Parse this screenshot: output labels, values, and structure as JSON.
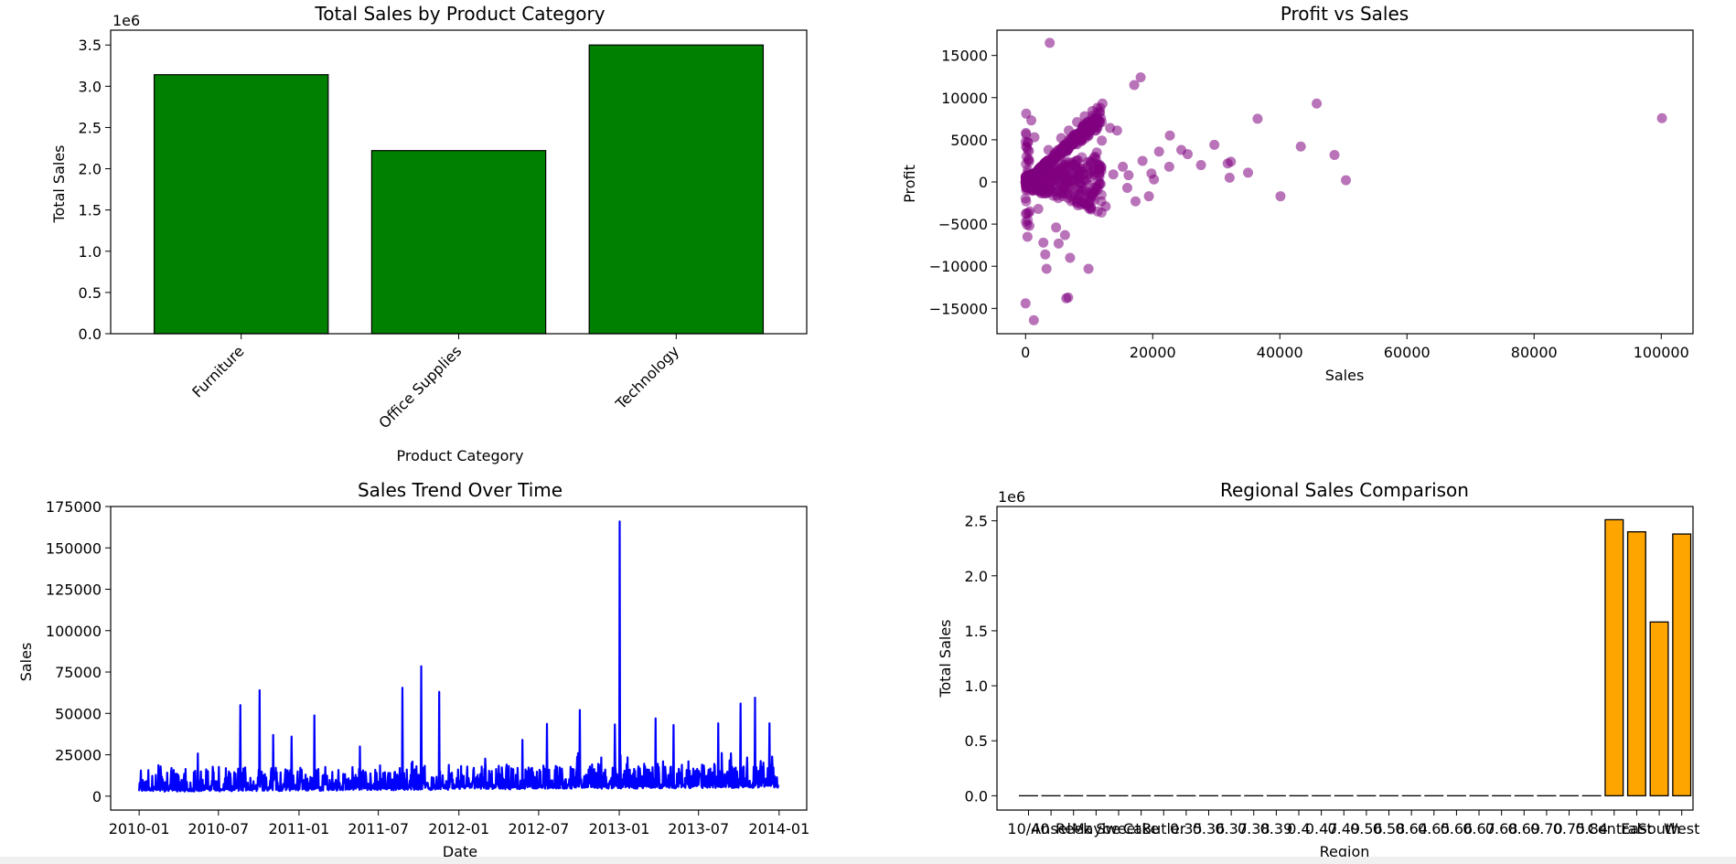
{
  "chart_data": [
    {
      "type": "bar",
      "title": "Total Sales by Product Category",
      "xlabel": "Product Category",
      "ylabel": "Total Sales",
      "offset_label": "1e6",
      "categories": [
        "Furniture",
        "Office Supplies",
        "Technology"
      ],
      "values": [
        3.14,
        2.22,
        3.5
      ],
      "ylim": [
        0,
        3.68
      ],
      "yticks": [
        "0.0",
        "0.5",
        "1.0",
        "1.5",
        "2.0",
        "2.5",
        "3.0",
        "3.5"
      ],
      "bar_color": "#008000",
      "edge_color": "#000000"
    },
    {
      "type": "scatter",
      "title": "Profit vs Sales",
      "xlabel": "Sales",
      "ylabel": "Profit",
      "xlim": [
        -4500,
        105000
      ],
      "ylim": [
        -18000,
        18000
      ],
      "xticks": [
        "0",
        "20000",
        "40000",
        "60000",
        "80000",
        "100000"
      ],
      "yticks": [
        "−15000",
        "−10000",
        "−5000",
        "0",
        "5000",
        "10000",
        "15000"
      ],
      "color": "#800080",
      "points": [
        [
          100119,
          7559
        ],
        [
          45800,
          9300
        ],
        [
          50400,
          200
        ],
        [
          48600,
          3200
        ],
        [
          43300,
          4200
        ],
        [
          40100,
          -1700
        ],
        [
          36500,
          7500
        ],
        [
          35000,
          1100
        ],
        [
          32300,
          2400
        ],
        [
          31800,
          2200
        ],
        [
          32100,
          500
        ],
        [
          29700,
          4400
        ],
        [
          27600,
          2000
        ],
        [
          25500,
          3300
        ],
        [
          24500,
          3800
        ],
        [
          22700,
          5500
        ],
        [
          22600,
          1800
        ],
        [
          21000,
          3600
        ],
        [
          20200,
          300
        ],
        [
          19800,
          1000
        ],
        [
          19400,
          -1700
        ],
        [
          18400,
          2500
        ],
        [
          18100,
          12400
        ],
        [
          17100,
          11500
        ],
        [
          17300,
          -2300
        ],
        [
          16200,
          800
        ],
        [
          16000,
          -700
        ],
        [
          15300,
          1800
        ],
        [
          13300,
          6400
        ],
        [
          12600,
          -2900
        ],
        [
          12100,
          9300
        ],
        [
          9900,
          -10300
        ],
        [
          7800,
          2000
        ],
        [
          6400,
          -13800
        ],
        [
          6700,
          -13700
        ],
        [
          7000,
          -9000
        ],
        [
          6200,
          -6300
        ],
        [
          5200,
          -7300
        ],
        [
          4800,
          -5400
        ],
        [
          3800,
          16500
        ],
        [
          3100,
          -8600
        ],
        [
          2800,
          -7200
        ],
        [
          3300,
          -10300
        ],
        [
          1300,
          -16400
        ],
        [
          0,
          -14400
        ],
        [
          300,
          -6500
        ],
        [
          600,
          -5200
        ],
        [
          100,
          8100
        ],
        [
          900,
          7300
        ],
        [
          1400,
          5300
        ],
        [
          400,
          4700
        ],
        [
          2000,
          -3200
        ],
        [
          2500,
          -1000
        ],
        [
          3600,
          3800
        ],
        [
          4300,
          2700
        ],
        [
          5600,
          5200
        ],
        [
          6800,
          6100
        ],
        [
          8100,
          7100
        ],
        [
          9300,
          7800
        ],
        [
          10500,
          8400
        ],
        [
          11300,
          8800
        ],
        [
          8700,
          -1500
        ],
        [
          10100,
          1000
        ],
        [
          11200,
          3500
        ],
        [
          12000,
          4900
        ],
        [
          14400,
          6100
        ],
        [
          13800,
          900
        ],
        [
          9700,
          5600
        ],
        [
          7400,
          4400
        ],
        [
          5000,
          -1200
        ],
        [
          6000,
          900
        ]
      ]
    },
    {
      "type": "line",
      "title": "Sales Trend Over Time",
      "xlabel": "Date",
      "ylabel": "Sales",
      "x_range": [
        "2010-01-01",
        "2013-12-31"
      ],
      "ylim": [
        -8400,
        175000
      ],
      "xticks": [
        "2010-01",
        "2010-07",
        "2011-01",
        "2011-07",
        "2012-01",
        "2012-07",
        "2013-01",
        "2013-07",
        "2014-01"
      ],
      "yticks": [
        "0",
        "25000",
        "50000",
        "75000",
        "100000",
        "125000",
        "150000",
        "175000"
      ],
      "color": "#0000ff",
      "peaks": [
        {
          "date": "2010-05-15",
          "value": 25800
        },
        {
          "date": "2010-08-20",
          "value": 55000
        },
        {
          "date": "2010-10-03",
          "value": 64000
        },
        {
          "date": "2010-11-03",
          "value": 37000
        },
        {
          "date": "2010-12-15",
          "value": 36000
        },
        {
          "date": "2011-02-05",
          "value": 48800
        },
        {
          "date": "2011-05-20",
          "value": 30000
        },
        {
          "date": "2011-08-25",
          "value": 65500
        },
        {
          "date": "2011-10-07",
          "value": 78500
        },
        {
          "date": "2011-11-17",
          "value": 63000
        },
        {
          "date": "2012-03-01",
          "value": 22700
        },
        {
          "date": "2012-05-25",
          "value": 34000
        },
        {
          "date": "2012-07-20",
          "value": 43700
        },
        {
          "date": "2012-10-03",
          "value": 52000
        },
        {
          "date": "2012-12-22",
          "value": 43300
        },
        {
          "date": "2013-01-02",
          "value": 166000
        },
        {
          "date": "2013-03-25",
          "value": 47000
        },
        {
          "date": "2013-05-05",
          "value": 43000
        },
        {
          "date": "2013-08-15",
          "value": 44000
        },
        {
          "date": "2013-10-05",
          "value": 56000
        },
        {
          "date": "2013-11-07",
          "value": 59500
        },
        {
          "date": "2013-12-10",
          "value": 44000
        }
      ]
    },
    {
      "type": "bar",
      "title": "Regional Sales Comparison",
      "xlabel": "Region",
      "ylabel": "Total Sales",
      "offset_label": "1e6",
      "categories": [
        "10/40",
        "Ansel",
        "Reek",
        "Maybe",
        "Sweet",
        "Cake",
        "Butler",
        "0.35",
        "0.36",
        "0.37",
        "0.38",
        "0.39",
        "0.4",
        "0.47",
        "0.49",
        "0.56",
        "0.58",
        "0.64",
        "0.65",
        "0.66",
        "0.67",
        "0.68",
        "0.69",
        "0.70",
        "0.75",
        "0.84",
        "Central",
        "East",
        "South",
        "West"
      ],
      "values": [
        0,
        0,
        0,
        0,
        0,
        0,
        0,
        0,
        0,
        0,
        0,
        0,
        0,
        0,
        0,
        0,
        0,
        0,
        0,
        0,
        0,
        0,
        0,
        0,
        0,
        0,
        2.51,
        2.4,
        1.58,
        2.38
      ],
      "ylim": [
        -0.13,
        2.63
      ],
      "yticks": [
        "0.0",
        "0.5",
        "1.0",
        "1.5",
        "2.0",
        "2.5"
      ],
      "bar_color": "#ffa500",
      "edge_color": "#000000"
    }
  ]
}
